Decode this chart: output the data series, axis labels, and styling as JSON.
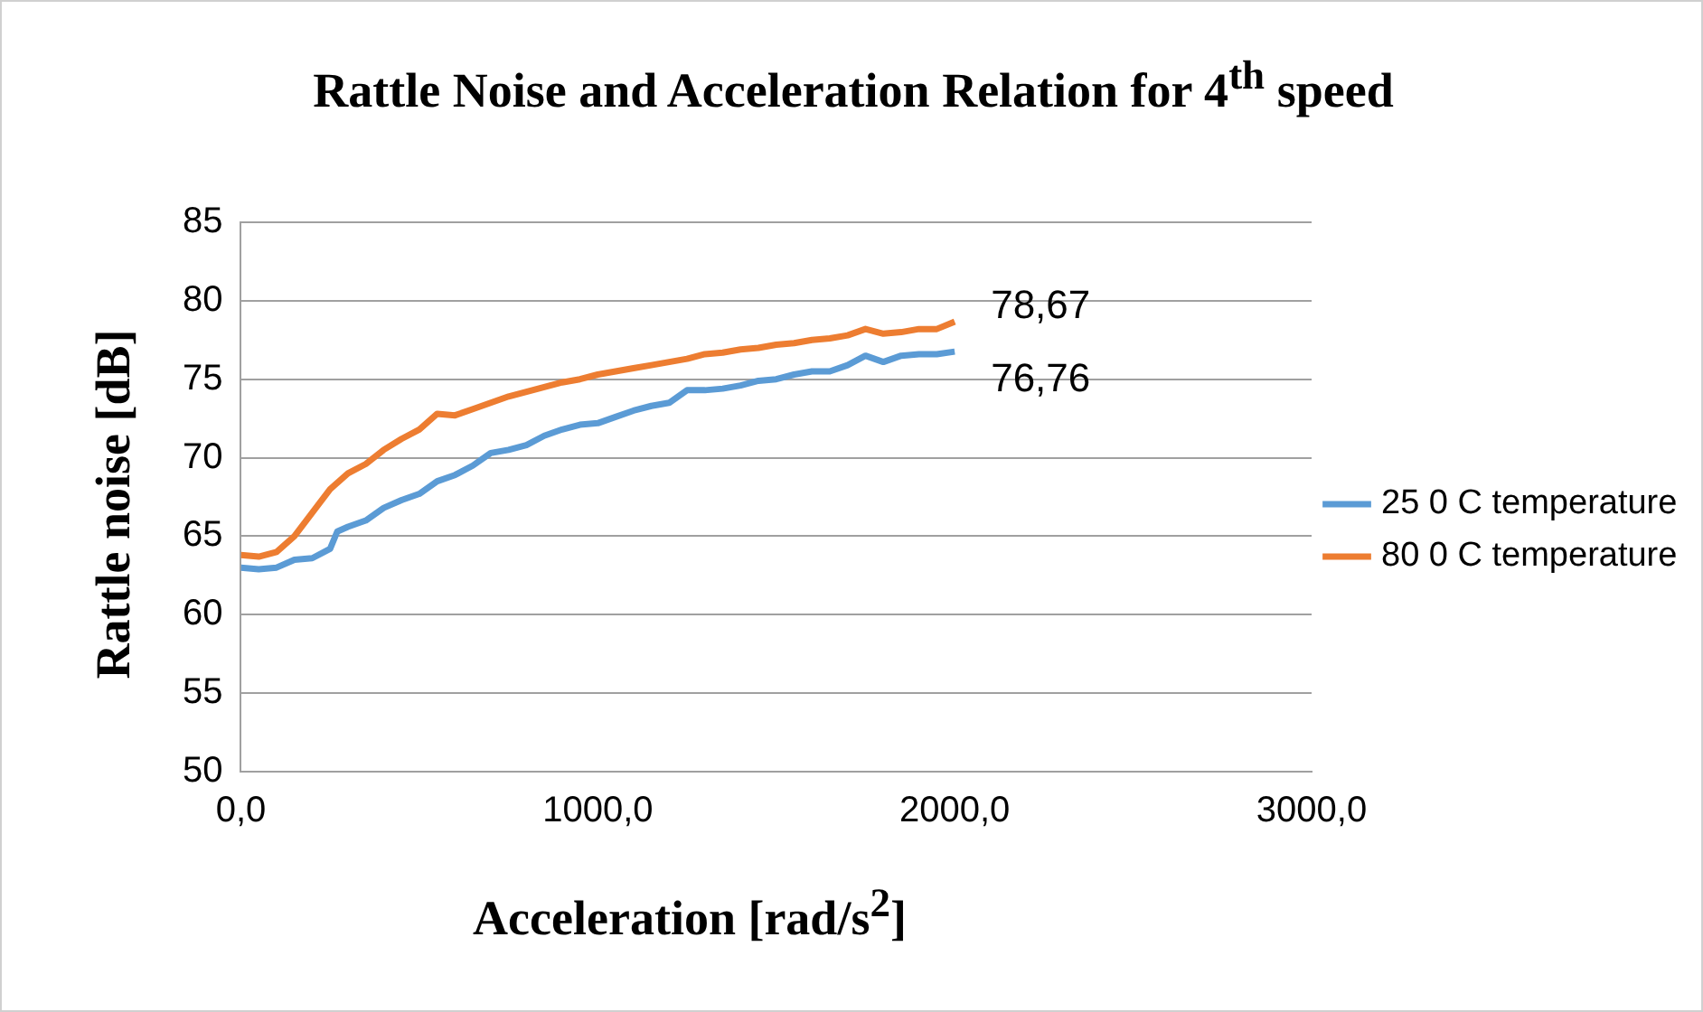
{
  "chart_data": {
    "type": "line",
    "title": "Rattle Noise and Acceleration Relation for 4$^{th}$ speed",
    "xlabel": "Acceleration [rad/s$^{2}$]",
    "ylabel": "Rattle noise [dB]",
    "xlim": [
      0,
      3000
    ],
    "xticks": [
      {
        "value": 0,
        "label": "0,0"
      },
      {
        "value": 1000,
        "label": "1000,0"
      },
      {
        "value": 2000,
        "label": "2000,0"
      },
      {
        "value": 3000,
        "label": "3000,0"
      }
    ],
    "ylim": [
      50,
      85
    ],
    "yticks": [
      50,
      55,
      60,
      65,
      70,
      75,
      80,
      85
    ],
    "grid": "y",
    "legend": "right",
    "marker": "none",
    "line_style": "solid",
    "series": [
      {
        "name": "25 0 C temperature",
        "color": "#5b9bd5",
        "x": [
          0,
          50,
          100,
          150,
          200,
          250,
          270,
          300,
          350,
          400,
          450,
          500,
          550,
          600,
          650,
          700,
          750,
          800,
          850,
          900,
          950,
          1000,
          1050,
          1100,
          1150,
          1200,
          1250,
          1300,
          1350,
          1400,
          1450,
          1500,
          1550,
          1600,
          1650,
          1700,
          1750,
          1800,
          1850,
          1900,
          1950,
          2000
        ],
        "values": [
          63.0,
          62.9,
          63.0,
          63.5,
          63.6,
          64.2,
          65.3,
          65.6,
          66.0,
          66.8,
          67.3,
          67.7,
          68.5,
          68.9,
          69.5,
          70.3,
          70.5,
          70.8,
          71.4,
          71.8,
          72.1,
          72.2,
          72.6,
          73.0,
          73.3,
          73.5,
          74.3,
          74.3,
          74.4,
          74.6,
          74.9,
          75.0,
          75.3,
          75.5,
          75.5,
          75.9,
          76.5,
          76.1,
          76.5,
          76.6,
          76.6,
          76.76
        ],
        "value_labels": [
          null,
          null,
          null,
          null,
          null,
          null,
          null,
          null,
          null,
          null,
          null,
          null,
          null,
          null,
          null,
          null,
          null,
          null,
          null,
          null,
          null,
          null,
          null,
          null,
          null,
          null,
          null,
          null,
          null,
          null,
          null,
          null,
          null,
          null,
          null,
          null,
          null,
          null,
          null,
          null,
          null,
          "76,76"
        ]
      },
      {
        "name": "80 0 C temperature",
        "color": "#ed7d31",
        "x": [
          0,
          50,
          100,
          150,
          200,
          250,
          300,
          350,
          400,
          450,
          500,
          550,
          600,
          650,
          700,
          750,
          800,
          850,
          900,
          950,
          1000,
          1050,
          1100,
          1150,
          1200,
          1250,
          1300,
          1350,
          1400,
          1450,
          1500,
          1550,
          1600,
          1650,
          1700,
          1750,
          1800,
          1850,
          1900,
          1950,
          2000
        ],
        "values": [
          63.8,
          63.7,
          64.0,
          65.0,
          66.5,
          68.0,
          69.0,
          69.6,
          70.5,
          71.2,
          71.8,
          72.8,
          72.7,
          73.1,
          73.5,
          73.9,
          74.2,
          74.5,
          74.8,
          75.0,
          75.3,
          75.5,
          75.7,
          75.9,
          76.1,
          76.3,
          76.6,
          76.7,
          76.9,
          77.0,
          77.2,
          77.3,
          77.5,
          77.6,
          77.8,
          78.2,
          77.9,
          78.0,
          78.2,
          78.2,
          78.67
        ],
        "value_labels": [
          null,
          null,
          null,
          null,
          null,
          null,
          null,
          null,
          null,
          null,
          null,
          null,
          null,
          null,
          null,
          null,
          null,
          null,
          null,
          null,
          null,
          null,
          null,
          null,
          null,
          null,
          null,
          null,
          null,
          null,
          null,
          null,
          null,
          null,
          null,
          null,
          null,
          null,
          null,
          null,
          "78,67"
        ]
      }
    ]
  }
}
